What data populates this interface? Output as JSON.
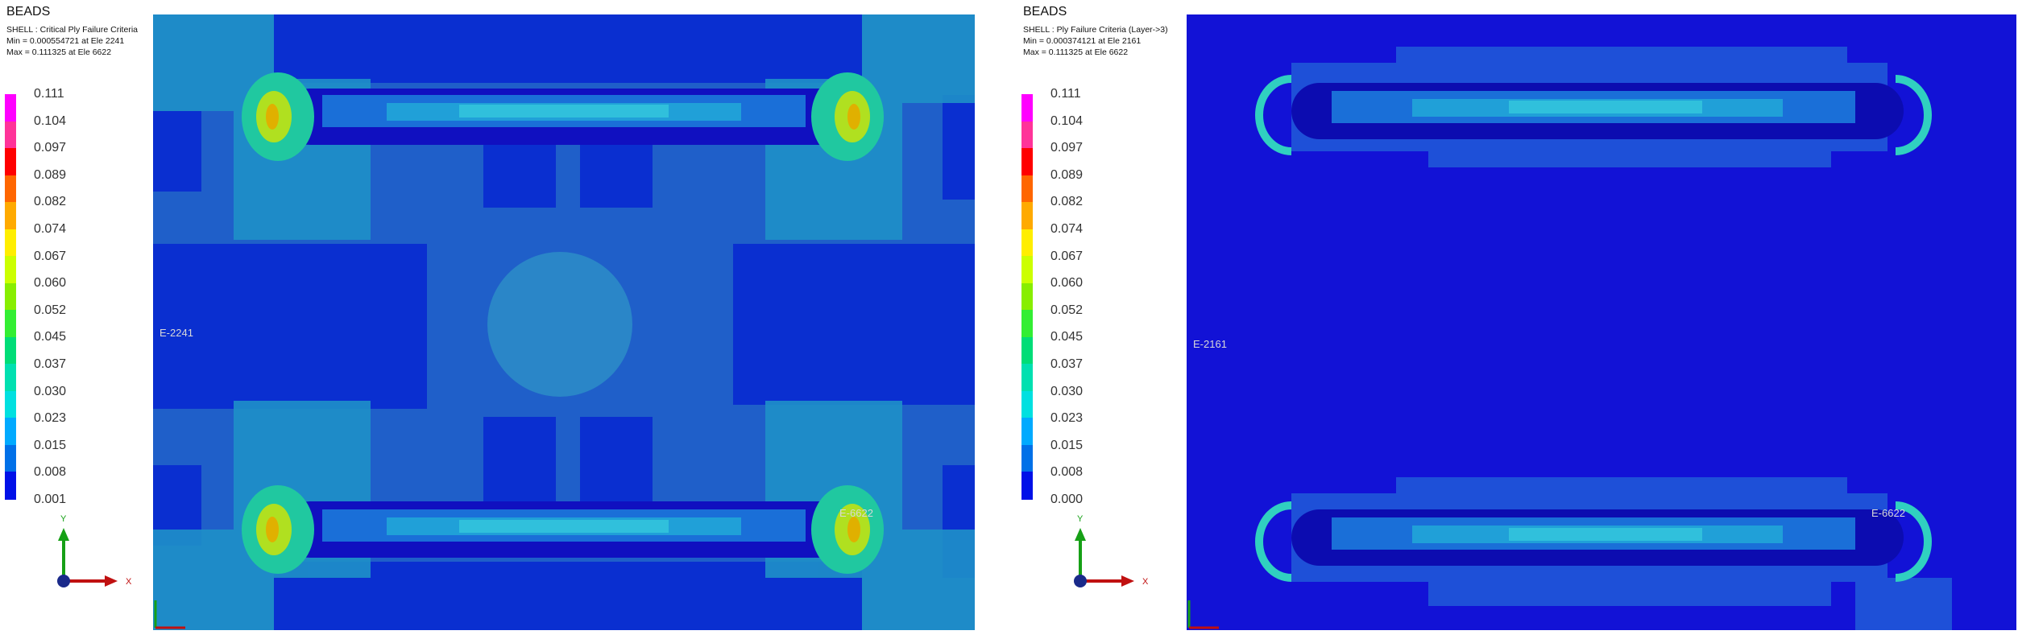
{
  "left": {
    "title": "BEADS",
    "info_line1": "SHELL : Critical Ply Failure Criteria",
    "info_line2": "Min = 0.000554721 at Ele 2241",
    "info_line3": "Max = 0.111325 at Ele 6622",
    "legend": [
      "0.111",
      "0.104",
      "0.097",
      "0.089",
      "0.082",
      "0.074",
      "0.067",
      "0.060",
      "0.052",
      "0.045",
      "0.037",
      "0.030",
      "0.023",
      "0.015",
      "0.008",
      "0.001"
    ],
    "min_element_label": "E-2241",
    "max_element_label": "E-6622"
  },
  "right": {
    "title": "BEADS",
    "info_line1": "SHELL : Ply Failure Criteria (Layer->3)",
    "info_line2": "Min = 0.000374121 at Ele 2161",
    "info_line3": "Max = 0.111325 at Ele 6622",
    "legend": [
      "0.111",
      "0.104",
      "0.097",
      "0.089",
      "0.082",
      "0.074",
      "0.067",
      "0.060",
      "0.052",
      "0.045",
      "0.037",
      "0.030",
      "0.023",
      "0.015",
      "0.008",
      "0.000"
    ],
    "min_element_label": "E-2161",
    "max_element_label": "E-6622"
  },
  "triad": {
    "y_label": "Y",
    "x_label": "X"
  },
  "colors": {
    "scale": [
      "#ff00ff",
      "#ff3399",
      "#ff0000",
      "#ff5500",
      "#ff9900",
      "#ffcc00",
      "#ffff00",
      "#ccff00",
      "#88ff00",
      "#33ff66",
      "#00ff99",
      "#00ffcc",
      "#00ccff",
      "#0099ff",
      "#0066ff",
      "#0000ff"
    ],
    "left_background": "#1f5fc9",
    "right_background": "#1212d6"
  }
}
